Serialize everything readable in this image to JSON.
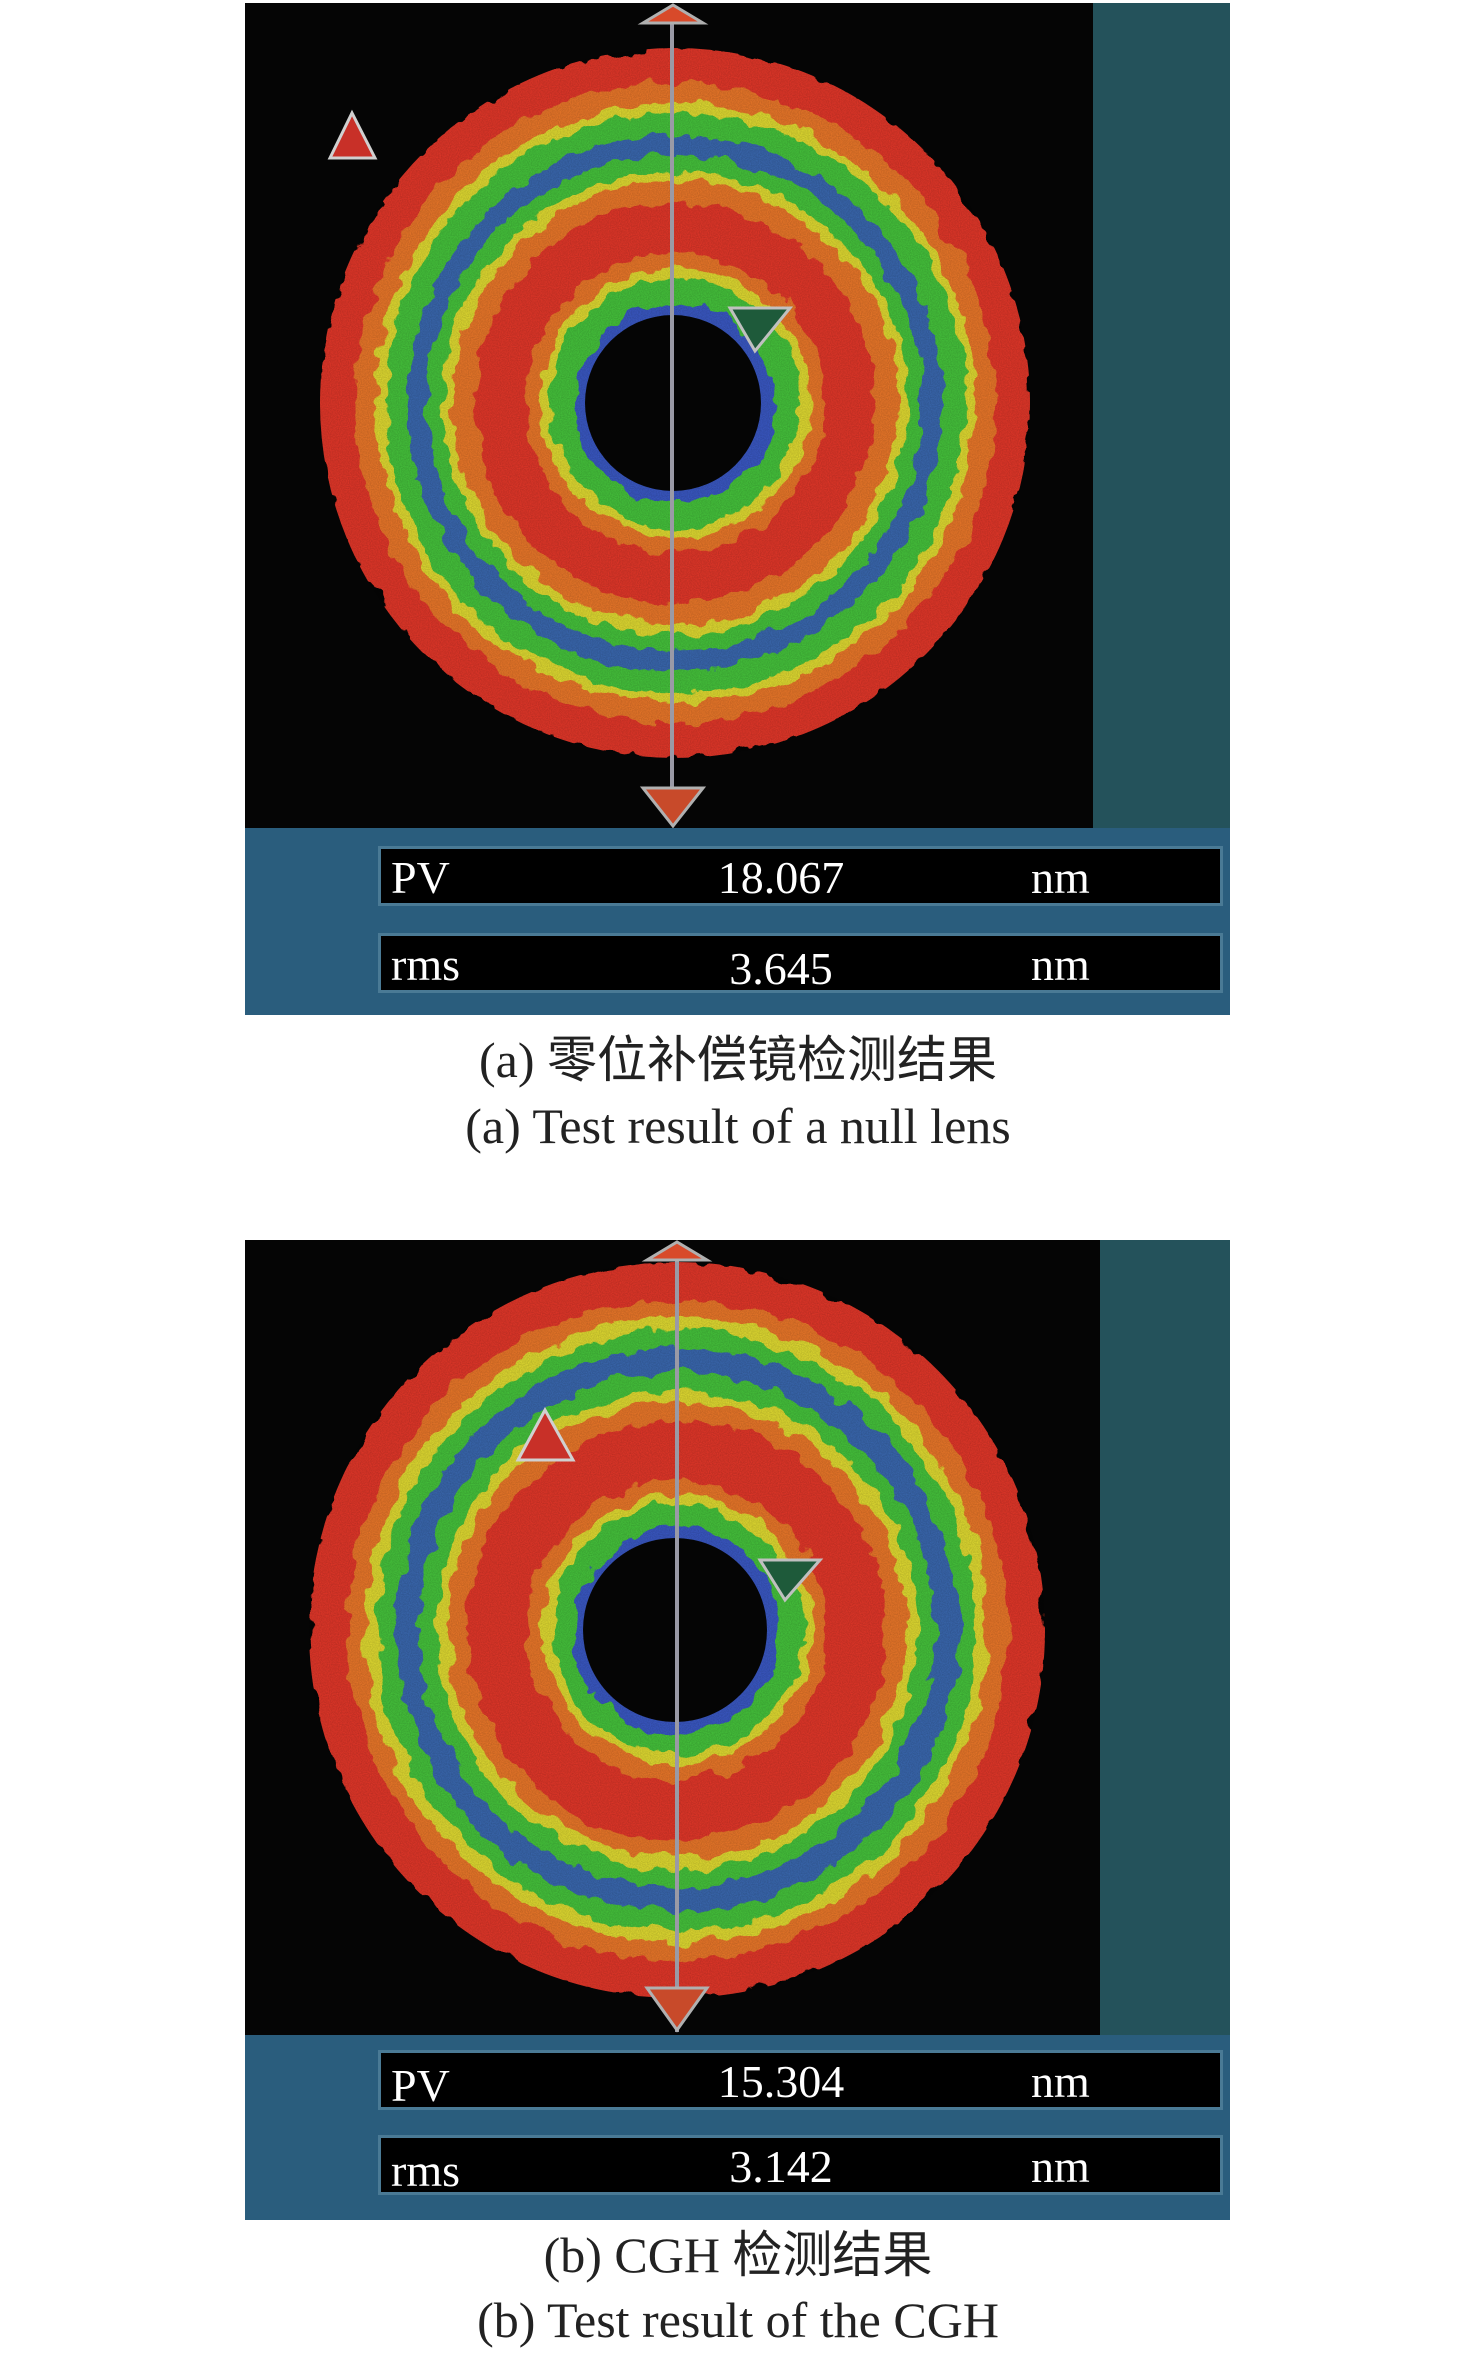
{
  "figure_a": {
    "pv_label": "PV",
    "pv_value": "18.067",
    "pv_unit": "nm",
    "rms_label": "rms",
    "rms_value": "3.645",
    "rms_unit": "nm",
    "caption_cn": "(a) 零位补偿镜检测结果",
    "caption_en": "(a) Test result of a null lens"
  },
  "figure_b": {
    "pv_label": "PV",
    "pv_value": "15.304",
    "pv_unit": "nm",
    "rms_label": "rms",
    "rms_value": "3.142",
    "rms_unit": "nm",
    "caption_cn": "(b) CGH 检测结果",
    "caption_en": "(b) Test result of the CGH"
  },
  "colors": {
    "panel_bg": "#24525b",
    "readout_bar": "#2a5d7d",
    "red": "#e8382a",
    "orange": "#f07a2a",
    "yellow": "#e6e032",
    "green": "#46c83c",
    "blue": "#3a5ac8",
    "hole": "#050505"
  }
}
